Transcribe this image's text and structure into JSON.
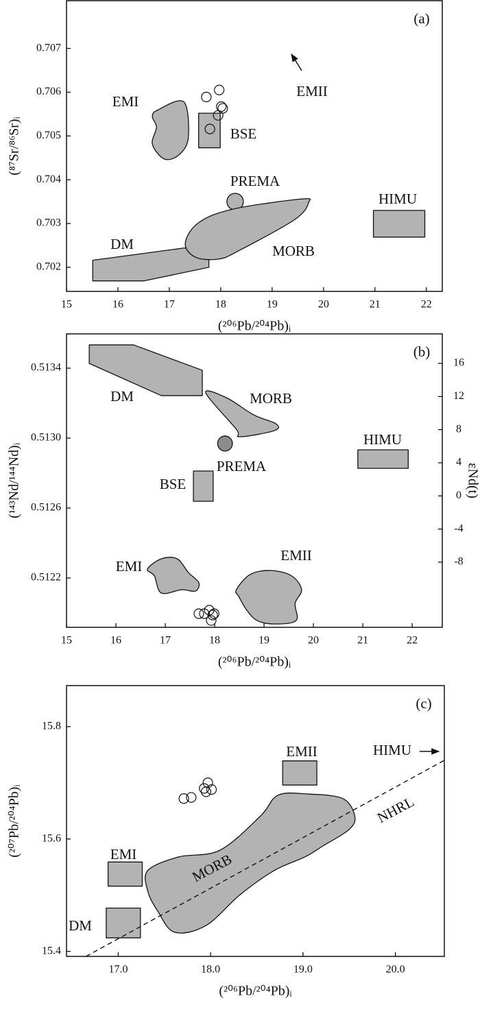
{
  "chart_data": [
    {
      "type": "scatter",
      "panel_label": "(a)",
      "x_label": "(²⁰⁶Pb/²⁰⁴Pb)ᵢ",
      "y_label": "(⁸⁷Sr/⁸⁶Sr)ᵢ",
      "xlim": [
        15,
        22.31
      ],
      "ylim": [
        0.70145,
        0.70809
      ],
      "xticks": [
        15,
        16,
        17,
        18,
        19,
        20,
        21,
        22
      ],
      "yticks": [
        0.702,
        0.703,
        0.704,
        0.705,
        0.706,
        0.707
      ],
      "field_color": "#b3b3b3",
      "fields": [
        {
          "name": "EMI",
          "x": [
            16.77,
            17.28,
            17.37,
            17.2,
            16.91,
            16.67,
            16.75,
            16.67
          ],
          "y": [
            0.70559,
            0.70578,
            0.70497,
            0.70458,
            0.70447,
            0.70481,
            0.7052,
            0.70544
          ]
        },
        {
          "name": "BSE",
          "x": [
            17.57,
            17.99,
            17.99,
            17.57
          ],
          "y": [
            0.70552,
            0.70552,
            0.70473,
            0.70473
          ]
        },
        {
          "name": "PREMA",
          "x": [
            18.28
          ],
          "y": [
            0.7035
          ],
          "rx": 0.16,
          "ry": 0.00019
        },
        {
          "name": "HIMU",
          "x": [
            20.97,
            21.97,
            21.97,
            20.97
          ],
          "y": [
            0.7033,
            0.7033,
            0.70269,
            0.70269
          ]
        },
        {
          "name": "DM",
          "x": [
            15.51,
            17.28,
            17.77,
            17.77,
            16.51,
            15.51
          ],
          "y": [
            0.70216,
            0.70244,
            0.70244,
            0.702,
            0.70169,
            0.70169
          ]
        },
        {
          "name": "MORB",
          "x": [
            17.31,
            17.57,
            18.24,
            19.57,
            19.71,
            19.44,
            18.37,
            17.97,
            17.51
          ],
          "y": [
            0.70255,
            0.70302,
            0.70333,
            0.70356,
            0.70348,
            0.70309,
            0.70239,
            0.70219,
            0.70223
          ]
        }
      ],
      "annotations": [
        {
          "text": "EMII"
        }
      ],
      "points": {
        "x": [
          17.72,
          17.97,
          18.01,
          17.95,
          17.79,
          18.04
        ],
        "y": [
          0.70589,
          0.70605,
          0.70567,
          0.70547,
          0.70516,
          0.70563
        ]
      }
    },
    {
      "type": "scatter",
      "panel_label": "(b)",
      "x_label": "(²⁰⁶Pb/²⁰⁴Pb)ᵢ",
      "y_label": "(¹⁴³Nd/¹⁴⁴Nd)ᵢ",
      "y2_label": "εNd(t)",
      "xlim": [
        15,
        22.61
      ],
      "ylim": [
        0.511918,
        0.513596
      ],
      "y2lim": [
        -15.86,
        19.56
      ],
      "xticks": [
        15,
        16,
        17,
        18,
        19,
        20,
        21,
        22
      ],
      "yticks": [
        0.5122,
        0.5126,
        {
          "value": 0.513,
          "label": "0.5130"
        },
        0.5134
      ],
      "y2ticks": [
        -8,
        -4,
        0,
        4,
        8,
        12,
        16
      ],
      "field_color": "#b3b3b3",
      "fields": [
        {
          "name": "DM",
          "x": [
            15.46,
            16.36,
            17.75,
            17.75,
            16.92,
            15.46
          ],
          "y": [
            0.513533,
            0.513533,
            0.513388,
            0.513243,
            0.513243,
            0.513427
          ]
        },
        {
          "name": "MORB",
          "x": [
            17.82,
            18.24,
            18.79,
            19.24,
            19.21,
            18.51,
            18.44
          ],
          "y": [
            0.513259,
            0.513231,
            0.513133,
            0.513082,
            0.513043,
            0.513008,
            0.51305
          ]
        },
        {
          "name": "PREMA",
          "x": [
            18.21
          ],
          "y": [
            0.512969
          ],
          "rx": 0.15,
          "ry": 4.3e-05,
          "color": "#8c8c8c"
        },
        {
          "name": "HIMU",
          "x": [
            20.9,
            21.92,
            21.92,
            20.9
          ],
          "y": [
            0.512933,
            0.512933,
            0.512827,
            0.512827
          ]
        },
        {
          "name": "BSE",
          "x": [
            17.57,
            17.97,
            17.97,
            17.57
          ],
          "y": [
            0.512812,
            0.512812,
            0.512639,
            0.512639
          ]
        },
        {
          "name": "EMI",
          "x": [
            16.64,
            16.92,
            17.24,
            17.47,
            17.68,
            17.61,
            17.33,
            16.92,
            16.78
          ],
          "y": [
            0.512251,
            0.51231,
            0.51231,
            0.512231,
            0.512173,
            0.512125,
            0.512133,
            0.512114,
            0.512212
          ]
        },
        {
          "name": "EMII",
          "x": [
            18.44,
            18.72,
            19.14,
            19.56,
            19.76,
            19.63,
            19.65,
            19.21,
            18.86,
            18.65,
            18.49
          ],
          "y": [
            0.512133,
            0.51222,
            0.512243,
            0.512212,
            0.512133,
            0.512055,
            0.511957,
            0.511937,
            0.511957,
            0.512016,
            0.512094
          ]
        }
      ],
      "points": {
        "x": [
          17.68,
          17.79,
          17.89,
          17.99,
          17.93,
          17.96
        ],
        "y": [
          0.511996,
          0.511996,
          0.512016,
          0.511996,
          0.511957,
          0.511988
        ]
      }
    },
    {
      "type": "scatter",
      "panel_label": "(c)",
      "x_label": "(²⁰⁶Pb/²⁰⁴Pb)ᵢ",
      "y_label": "(²⁰⁷Pb/²⁰⁴Pb)ᵢ",
      "xlim": [
        16.44,
        20.53
      ],
      "ylim": [
        15.391,
        15.873
      ],
      "xticks": [
        {
          "value": 17,
          "label": "17.0"
        },
        {
          "value": 18,
          "label": "18.0"
        },
        {
          "value": 19,
          "label": "19.0"
        },
        {
          "value": 20,
          "label": "20.0"
        }
      ],
      "yticks": [
        15.4,
        15.6,
        15.8
      ],
      "field_color": "#b3b3b3",
      "fields": [
        {
          "name": "EMII",
          "x": [
            18.78,
            19.15,
            19.15,
            18.78
          ],
          "y": [
            15.739,
            15.739,
            15.696,
            15.696
          ]
        },
        {
          "name": "EMI",
          "x": [
            16.89,
            17.26,
            17.26,
            16.89
          ],
          "y": [
            15.559,
            15.559,
            15.516,
            15.516
          ]
        },
        {
          "name": "DM",
          "x": [
            16.87,
            17.24,
            17.24,
            16.87
          ],
          "y": [
            15.477,
            15.477,
            15.424,
            15.424
          ]
        },
        {
          "name": "MORB",
          "x": [
            17.32,
            17.65,
            18.1,
            18.54,
            18.73,
            19.06,
            19.43,
            19.56,
            19.5,
            19.21,
            19.02,
            18.69,
            18.32,
            17.95,
            17.61,
            17.43,
            17.32
          ],
          "y": [
            15.544,
            15.568,
            15.58,
            15.641,
            15.678,
            15.68,
            15.672,
            15.641,
            15.617,
            15.587,
            15.568,
            15.544,
            15.501,
            15.446,
            15.434,
            15.471,
            15.507
          ]
        }
      ],
      "lines": [
        {
          "name": "NHRL",
          "x": [
            16.65,
            20.53
          ],
          "y": [
            15.391,
            15.74
          ]
        }
      ],
      "annotations": [
        {
          "text": "HIMU"
        }
      ],
      "points": {
        "x": [
          17.71,
          17.79,
          17.93,
          17.97,
          18.01,
          17.95
        ],
        "y": [
          15.672,
          15.674,
          15.69,
          15.7,
          15.688,
          15.684
        ]
      }
    }
  ]
}
